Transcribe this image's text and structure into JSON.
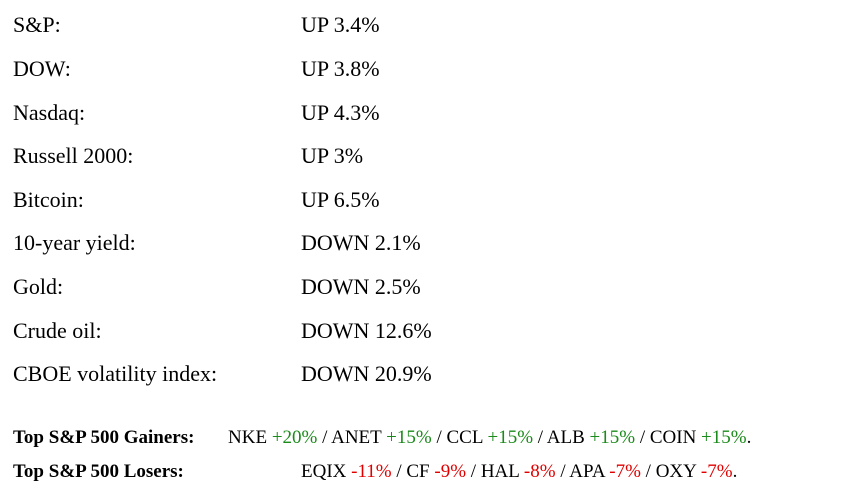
{
  "markets": [
    {
      "label": "S&P:",
      "value": "UP 3.4%"
    },
    {
      "label": "DOW:",
      "value": "UP 3.8%"
    },
    {
      "label": "Nasdaq:",
      "value": "UP 4.3%"
    },
    {
      "label": "Russell 2000:",
      "value": "UP 3%"
    },
    {
      "label": "Bitcoin:",
      "value": "UP 6.5%"
    },
    {
      "label": "10-year yield:",
      "value": "DOWN 2.1%"
    },
    {
      "label": "Gold:",
      "value": "DOWN 2.5%"
    },
    {
      "label": "Crude oil:",
      "value": "DOWN 12.6%"
    },
    {
      "label": "CBOE volatility index:",
      "value": "DOWN 20.9%"
    }
  ],
  "gainers": {
    "label": "Top S&P 500 Gainers:",
    "items": [
      {
        "ticker": "NKE",
        "change": "+20%"
      },
      {
        "ticker": "ANET",
        "change": "+15%"
      },
      {
        "ticker": "CCL",
        "change": "+15%"
      },
      {
        "ticker": "ALB",
        "change": "+15%"
      },
      {
        "ticker": "COIN",
        "change": "+15%"
      }
    ],
    "color": "#1a8a1a"
  },
  "losers": {
    "label": "Top S&P 500 Losers:",
    "items": [
      {
        "ticker": "EQIX",
        "change": "-11%"
      },
      {
        "ticker": "CF",
        "change": "-9%"
      },
      {
        "ticker": "HAL",
        "change": "-8%"
      },
      {
        "ticker": "APA",
        "change": "-7%"
      },
      {
        "ticker": "OXY",
        "change": "-7%"
      }
    ],
    "color": "#e00000"
  }
}
